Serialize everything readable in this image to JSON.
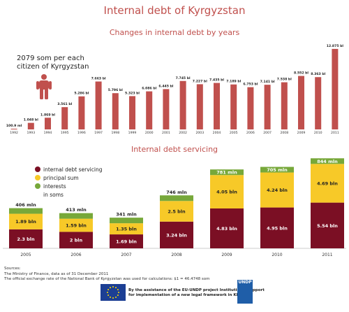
{
  "page": {
    "title": "Internal debt of Kyrgyzstan",
    "callout_line1": "2079 som per each",
    "callout_line2": "citizen of Kyrgyzstan"
  },
  "colors": {
    "bar_red": "#c0504d",
    "servicing": "#7b0f24",
    "principal": "#f7c928",
    "interests": "#77a83a"
  },
  "chart_data": [
    {
      "type": "bar",
      "title": "Changes in internal debt by years",
      "categories": [
        "1992",
        "1993",
        "1994",
        "1995",
        "1996",
        "1997",
        "1998",
        "1999",
        "2000",
        "2001",
        "2002",
        "2003",
        "2004",
        "2005",
        "2006",
        "2007",
        "2008",
        "2009",
        "2010",
        "2011"
      ],
      "values": [
        0.1009,
        1.048,
        1.869,
        3.561,
        5.286,
        7.663,
        5.796,
        5.323,
        6.086,
        6.445,
        7.745,
        7.227,
        7.435,
        7.189,
        6.753,
        7.141,
        7.538,
        8.552,
        8.363,
        12.875
      ],
      "labels": [
        "100.9 ml",
        "1.048 bl",
        "1.869 bl",
        "3.561 bl",
        "5.286 bl",
        "7.663 bl",
        "5.796 bl",
        "5.323 bl",
        "6.086 bl",
        "6.445 bl",
        "7.745 bl",
        "7.227 bl",
        "7.435 bl",
        "7.189 bl",
        "6.753 bl",
        "7.141 bl",
        "7.538 bl",
        "8.552 bl",
        "8.363 bl",
        "12.875 bl"
      ],
      "ylim": [
        0,
        13.2
      ]
    },
    {
      "type": "bar",
      "stacked": true,
      "title": "Internal debt servicing",
      "legend_placement": "top-left",
      "categories": [
        "2005",
        "2006",
        "2007",
        "2008",
        "2009",
        "2010",
        "2011"
      ],
      "series": [
        {
          "name": "internal debt servicing",
          "values": [
            0.406,
            0.413,
            0.341,
            0.746,
            0.781,
            0.705,
            0.844
          ],
          "labels": [
            "406 mln",
            "413 mln",
            "341 mln",
            "746 mln",
            "781 mln",
            "705 mln",
            "844 mln"
          ]
        },
        {
          "name": "principal sum",
          "values": [
            1.89,
            1.59,
            1.35,
            2.5,
            4.05,
            4.24,
            4.69
          ],
          "labels": [
            "1.89 bln",
            "1.59 bln",
            "1.35 bln",
            "2.5 bln",
            "4.05 bln",
            "4.24 bln",
            "4.69 bln"
          ]
        },
        {
          "name": "interests",
          "values": [
            2.3,
            2.0,
            1.69,
            3.24,
            4.83,
            4.95,
            5.54
          ],
          "labels": [
            "2.3 bln",
            "2 bln",
            "1.69 bln",
            "3.24 bln",
            "4.83 bln",
            "4.95 bln",
            "5.54 bln"
          ]
        }
      ],
      "legend_extra": "in soms",
      "ylim": [
        0,
        11.2
      ]
    }
  ],
  "footer": {
    "sources_label": "Sources:",
    "source1": "The Ministry of Finance, data as of 31 December 2011",
    "source2": "The official exchange rate of the National Bank of Kyrgyzstan was used for calculations: $1 = 46.4748 som",
    "credit_line1": "By the assistance of the EU-UNDP project Institutional support",
    "credit_line2": "for implementation of a new legal framework in KR",
    "undp_logo_text": "UNDP"
  }
}
